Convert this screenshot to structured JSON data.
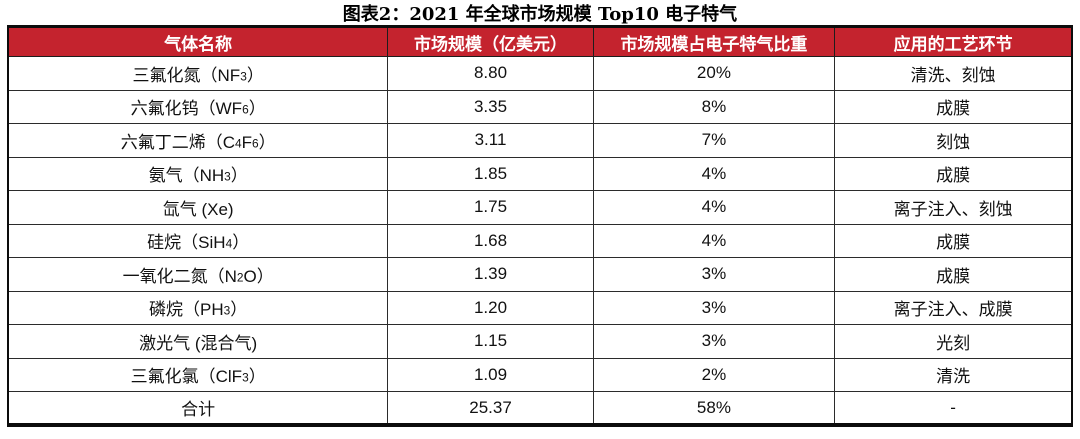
{
  "title": "图表2：2021 年全球市场规模 Top10 电子特气",
  "colors": {
    "header_bg": "#c4232e",
    "header_text": "#ffffff",
    "border": "#1d1d1d",
    "body_text": "#111111"
  },
  "table": {
    "headers": [
      "气体名称",
      "市场规模（亿美元）",
      "市场规模占电子特气比重",
      "应用的工艺环节"
    ],
    "rows": [
      {
        "gas": [
          {
            "t": "三氟化氮（NF"
          },
          {
            "t": "3",
            "sub": true
          },
          {
            "t": "）"
          }
        ],
        "market_size": "8.80",
        "share": "20%",
        "process": "清洗、刻蚀"
      },
      {
        "gas": [
          {
            "t": "六氟化钨（WF"
          },
          {
            "t": "6",
            "sub": true
          },
          {
            "t": "）"
          }
        ],
        "market_size": "3.35",
        "share": "8%",
        "process": "成膜"
      },
      {
        "gas": [
          {
            "t": "六氟丁二烯（C"
          },
          {
            "t": "4",
            "sub": true
          },
          {
            "t": "F"
          },
          {
            "t": "6",
            "sub": true
          },
          {
            "t": "）"
          }
        ],
        "market_size": "3.11",
        "share": "7%",
        "process": "刻蚀"
      },
      {
        "gas": [
          {
            "t": "氨气（NH"
          },
          {
            "t": "3",
            "sub": true
          },
          {
            "t": "）"
          }
        ],
        "market_size": "1.85",
        "share": "4%",
        "process": "成膜"
      },
      {
        "gas": [
          {
            "t": "氙气 (Xe)"
          }
        ],
        "market_size": "1.75",
        "share": "4%",
        "process": "离子注入、刻蚀"
      },
      {
        "gas": [
          {
            "t": "硅烷（SiH"
          },
          {
            "t": "4",
            "sub": true
          },
          {
            "t": "）"
          }
        ],
        "market_size": "1.68",
        "share": "4%",
        "process": "成膜"
      },
      {
        "gas": [
          {
            "t": "一氧化二氮（N"
          },
          {
            "t": "2",
            "sub": true
          },
          {
            "t": "O）"
          }
        ],
        "market_size": "1.39",
        "share": "3%",
        "process": "成膜"
      },
      {
        "gas": [
          {
            "t": "磷烷（PH"
          },
          {
            "t": "3",
            "sub": true
          },
          {
            "t": "）"
          }
        ],
        "market_size": "1.20",
        "share": "3%",
        "process": "离子注入、成膜"
      },
      {
        "gas": [
          {
            "t": "激光气 (混合气)"
          }
        ],
        "market_size": "1.15",
        "share": "3%",
        "process": "光刻"
      },
      {
        "gas": [
          {
            "t": "三氟化氯（ClF"
          },
          {
            "t": "3",
            "sub": true
          },
          {
            "t": "）"
          }
        ],
        "market_size": "1.09",
        "share": "2%",
        "process": "清洗"
      },
      {
        "gas": [
          {
            "t": "合计"
          }
        ],
        "market_size": "25.37",
        "share": "58%",
        "process": "-",
        "total": true
      }
    ]
  },
  "chart_data": {
    "type": "table",
    "title": "图表2：2021 年全球市场规模 Top10 电子特气",
    "columns": [
      "气体名称",
      "市场规模（亿美元）",
      "市场规模占电子特气比重",
      "应用的工艺环节"
    ],
    "rows": [
      [
        "三氟化氮（NF3）",
        "8.80",
        "20%",
        "清洗、刻蚀"
      ],
      [
        "六氟化钨（WF6）",
        "3.35",
        "8%",
        "成膜"
      ],
      [
        "六氟丁二烯（C4F6）",
        "3.11",
        "7%",
        "刻蚀"
      ],
      [
        "氨气（NH3）",
        "1.85",
        "4%",
        "成膜"
      ],
      [
        "氙气 (Xe)",
        "1.75",
        "4%",
        "离子注入、刻蚀"
      ],
      [
        "硅烷（SiH4）",
        "1.68",
        "4%",
        "成膜"
      ],
      [
        "一氧化二氮（N2O）",
        "1.39",
        "3%",
        "成膜"
      ],
      [
        "磷烷（PH3）",
        "1.20",
        "3%",
        "离子注入、成膜"
      ],
      [
        "激光气 (混合气)",
        "1.15",
        "3%",
        "光刻"
      ],
      [
        "三氟化氯（ClF3）",
        "1.09",
        "2%",
        "清洗"
      ],
      [
        "合计",
        "25.37",
        "58%",
        "-"
      ]
    ]
  }
}
